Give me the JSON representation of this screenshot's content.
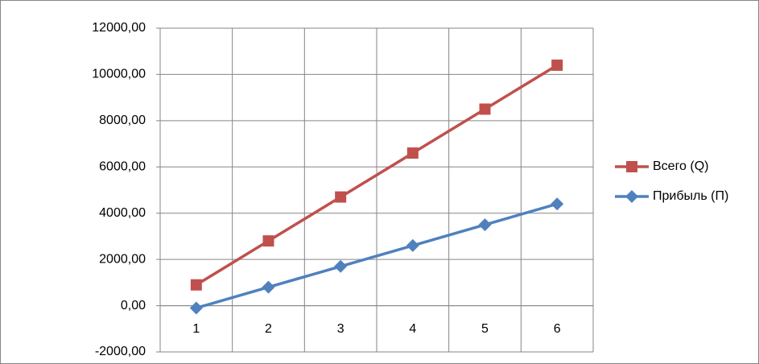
{
  "chart_data": {
    "type": "line",
    "categories": [
      "1",
      "2",
      "3",
      "4",
      "5",
      "6"
    ],
    "series": [
      {
        "name": "Всего (Q)",
        "color": "#c0504d",
        "marker": "square",
        "values": [
          900,
          2800,
          4700,
          6600,
          8500,
          10400
        ]
      },
      {
        "name": "Прибыль (П)",
        "color": "#4f81bd",
        "marker": "diamond",
        "values": [
          -100,
          800,
          1700,
          2600,
          3500,
          4400
        ]
      }
    ],
    "ylim": [
      -2000,
      12000
    ],
    "yticks": [
      {
        "value": -2000,
        "label": "-2000,00"
      },
      {
        "value": 0,
        "label": "0,00"
      },
      {
        "value": 2000,
        "label": "2000,00"
      },
      {
        "value": 4000,
        "label": "4000,00"
      },
      {
        "value": 6000,
        "label": "6000,00"
      },
      {
        "value": 8000,
        "label": "8000,00"
      },
      {
        "value": 10000,
        "label": "10000,00"
      },
      {
        "value": 12000,
        "label": "12000,00"
      }
    ],
    "grid": true,
    "legend": "right"
  }
}
